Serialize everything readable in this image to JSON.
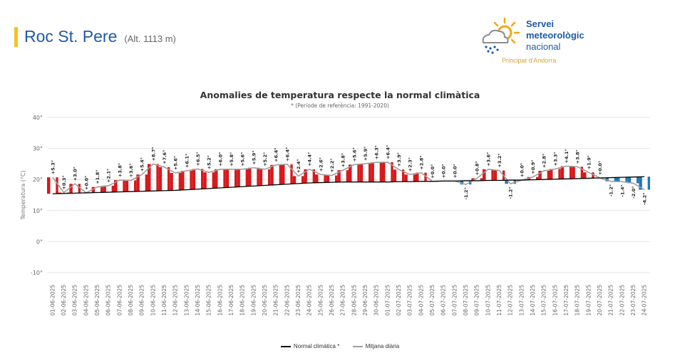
{
  "header": {
    "station": "Roc St. Pere",
    "altitude": "(Alt. 1113 m)"
  },
  "logo": {
    "line1": "Servei",
    "line2": "meteorològic",
    "line3": "nacional",
    "subtitle": "Principat d'Andorra"
  },
  "colors": {
    "accent": "#f7c21e",
    "brand": "#1e5aa8",
    "positive": "#d7191c",
    "negative": "#1f78b4",
    "normal_line": "#000000",
    "daily_line": "#9e9e9e"
  },
  "chart_data": {
    "type": "bar",
    "title": "Anomalies de temperatura respecte la normal climàtica",
    "subtitle": "* (Període de referència: 1991-2020)",
    "xlabel": "",
    "ylabel": "Temperatura (°C)",
    "ylim": [
      -10,
      40
    ],
    "yticks": [
      -10,
      0,
      10,
      20,
      30,
      40
    ],
    "ytick_labels": [
      "-10°",
      "0°",
      "10°",
      "20°",
      "30°",
      "40°"
    ],
    "grid": true,
    "legend_position": "bottom",
    "categories": [
      "01-06-2025",
      "02-06-2025",
      "03-06-2025",
      "04-06-2025",
      "05-06-2025",
      "06-06-2025",
      "07-06-2025",
      "08-06-2025",
      "09-06-2025",
      "10-06-2025",
      "11-06-2025",
      "12-06-2025",
      "13-06-2025",
      "14-06-2025",
      "15-06-2025",
      "16-06-2025",
      "17-06-2025",
      "18-06-2025",
      "19-06-2025",
      "20-06-2025",
      "21-06-2025",
      "22-06-2025",
      "23-06-2025",
      "24-06-2025",
      "25-06-2025",
      "26-06-2025",
      "27-06-2025",
      "28-06-2025",
      "29-06-2025",
      "30-06-2025",
      "01-07-2025",
      "02-07-2025",
      "03-07-2025",
      "04-07-2025",
      "05-07-2025",
      "06-07-2025",
      "07-07-2025",
      "08-07-2025",
      "09-07-2025",
      "10-07-2025",
      "11-07-2025",
      "12-07-2025",
      "13-07-2025",
      "14-07-2025",
      "15-07-2025",
      "16-07-2025",
      "17-07-2025",
      "18-07-2025",
      "19-07-2025",
      "20-07-2025",
      "21-07-2025",
      "22-07-2025",
      "23-07-2025",
      "24-07-2025"
    ],
    "series": [
      {
        "name": "Normal climàtica *",
        "values": [
          15.4,
          15.5,
          15.6,
          15.7,
          15.8,
          15.9,
          16.0,
          16.1,
          16.2,
          16.3,
          16.4,
          16.5,
          16.7,
          16.9,
          17.1,
          17.3,
          17.5,
          17.7,
          17.9,
          18.1,
          18.3,
          18.5,
          18.7,
          18.9,
          19.0,
          19.1,
          19.2,
          19.2,
          19.2,
          19.2,
          19.2,
          19.3,
          19.3,
          19.4,
          19.4,
          19.5,
          19.5,
          19.6,
          19.6,
          19.7,
          19.7,
          19.8,
          19.8,
          19.9,
          20.0,
          20.1,
          20.2,
          20.3,
          20.4,
          20.5,
          20.6,
          20.7,
          20.8,
          20.9
        ]
      },
      {
        "name": "Mitjana diària",
        "values": [
          20.7,
          15.8,
          18.6,
          15.7,
          17.6,
          18.0,
          19.8,
          19.7,
          21.6,
          25.0,
          24.0,
          22.1,
          22.8,
          23.4,
          22.3,
          23.3,
          23.3,
          23.3,
          23.8,
          23.3,
          24.7,
          24.9,
          21.1,
          23.3,
          21.6,
          21.3,
          23.0,
          24.8,
          25.1,
          25.5,
          25.6,
          23.2,
          21.6,
          22.2,
          19.4,
          19.5,
          19.5,
          18.4,
          20.4,
          23.3,
          22.9,
          18.6,
          19.8,
          20.8,
          22.8,
          23.4,
          24.3,
          24.1,
          22.3,
          20.5,
          19.4,
          19.3,
          18.8,
          16.7
        ]
      }
    ],
    "anomaly_labels": [
      "+5.3°",
      "+0.3°",
      "+3.0°",
      "+0.0°",
      "+1.8°",
      "+2.1°",
      "+3.8°",
      "+3.6°",
      "+5.4°",
      "+8.7°",
      "+7.6°",
      "+5.6°",
      "+6.1°",
      "+6.5°",
      "+5.2°",
      "+6.0°",
      "+5.8°",
      "+5.6°",
      "+5.9°",
      "+5.2°",
      "+6.4°",
      "+6.4°",
      "+2.4°",
      "+4.4°",
      "+2.6°",
      "+2.2°",
      "+3.8°",
      "+5.6°",
      "+5.9°",
      "+6.3°",
      "+6.4°",
      "+3.9°",
      "+2.3°",
      "+2.8°",
      "+0.0°",
      "+0.0°",
      "+0.0°",
      "-1.2°",
      "+0.8°",
      "+3.6°",
      "+3.2°",
      "-1.2°",
      "+0.0°",
      "+0.9°",
      "+2.8°",
      "+3.3°",
      "+4.1°",
      "+3.8°",
      "+1.9°",
      "+0.0°",
      "-1.2°",
      "-1.4°",
      "-2.0°",
      "-4.2°"
    ]
  },
  "legend": {
    "normal": "Normal climàtica *",
    "daily": "Mitjana diària"
  }
}
